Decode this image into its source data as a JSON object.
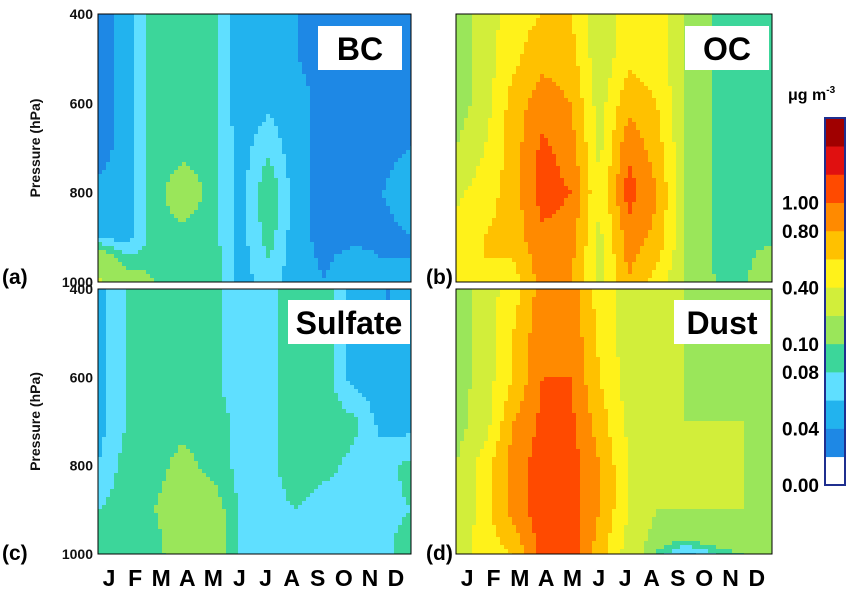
{
  "chart_data": [
    {
      "type": "heatmap",
      "panel_label": "(a)",
      "title": "BC",
      "ylabel": "Pressure (hPa)",
      "yticks": [
        "400",
        "600",
        "800",
        "1000"
      ],
      "ylim": [
        1000,
        400
      ],
      "x": [
        "J",
        "F",
        "M",
        "A",
        "M",
        "J",
        "J",
        "A",
        "S",
        "O",
        "N",
        "D"
      ],
      "y": [
        1000,
        900,
        800,
        700,
        600,
        500,
        400
      ],
      "values": [
        [
          0.22,
          0.12,
          0.1,
          0.09,
          0.1,
          0.05,
          0.07,
          0.045,
          0.04,
          0.06,
          0.045,
          0.04
        ],
        [
          0.06,
          0.05,
          0.09,
          0.09,
          0.09,
          0.05,
          0.09,
          0.045,
          0.035,
          0.035,
          0.035,
          0.04
        ],
        [
          0.045,
          0.05,
          0.09,
          0.12,
          0.09,
          0.05,
          0.1,
          0.045,
          0.035,
          0.035,
          0.04,
          0.05
        ],
        [
          0.03,
          0.05,
          0.09,
          0.09,
          0.09,
          0.05,
          0.075,
          0.045,
          0.035,
          0.035,
          0.035,
          0.04
        ],
        [
          0.03,
          0.05,
          0.09,
          0.09,
          0.09,
          0.045,
          0.055,
          0.045,
          0.035,
          0.03,
          0.03,
          0.03
        ],
        [
          0.03,
          0.05,
          0.09,
          0.09,
          0.09,
          0.045,
          0.045,
          0.04,
          0.035,
          0.03,
          0.03,
          0.03
        ],
        [
          0.03,
          0.05,
          0.09,
          0.09,
          0.09,
          0.045,
          0.045,
          0.04,
          0.035,
          0.03,
          0.03,
          0.03
        ]
      ]
    },
    {
      "type": "heatmap",
      "panel_label": "(b)",
      "title": "OC",
      "ylabel": "",
      "yticks": [],
      "ylim": [
        1000,
        400
      ],
      "x": [
        "J",
        "F",
        "M",
        "A",
        "M",
        "J",
        "J",
        "A",
        "S",
        "O",
        "N",
        "D"
      ],
      "y": [
        1000,
        900,
        800,
        700,
        600,
        500,
        400
      ],
      "values": [
        [
          0.6,
          0.6,
          0.5,
          0.9,
          0.8,
          0.3,
          0.8,
          0.5,
          0.2,
          0.1,
          0.09,
          0.15
        ],
        [
          0.5,
          0.6,
          0.7,
          0.95,
          0.9,
          0.35,
          0.9,
          0.75,
          0.2,
          0.09,
          0.09,
          0.09
        ],
        [
          0.35,
          0.5,
          0.7,
          1.1,
          1.0,
          0.4,
          1.1,
          0.8,
          0.2,
          0.09,
          0.09,
          0.09
        ],
        [
          0.2,
          0.4,
          0.7,
          1.05,
          0.9,
          0.35,
          0.95,
          0.7,
          0.2,
          0.09,
          0.09,
          0.09
        ],
        [
          0.1,
          0.3,
          0.7,
          0.9,
          0.8,
          0.3,
          0.75,
          0.6,
          0.2,
          0.09,
          0.09,
          0.09
        ],
        [
          0.1,
          0.3,
          0.55,
          0.75,
          0.7,
          0.25,
          0.55,
          0.5,
          0.2,
          0.09,
          0.09,
          0.09
        ],
        [
          0.1,
          0.3,
          0.5,
          0.6,
          0.6,
          0.25,
          0.5,
          0.5,
          0.2,
          0.09,
          0.09,
          0.09
        ]
      ]
    },
    {
      "type": "heatmap",
      "panel_label": "(c)",
      "title": "Sulfate",
      "ylabel": "Pressure (hPa)",
      "yticks": [
        "400",
        "600",
        "800",
        "1000"
      ],
      "ylim": [
        1000,
        400
      ],
      "x": [
        "J",
        "F",
        "M",
        "A",
        "M",
        "J",
        "J",
        "A",
        "S",
        "O",
        "N",
        "D"
      ],
      "y": [
        1000,
        900,
        800,
        700,
        600,
        500,
        400
      ],
      "values": [
        [
          0.09,
          0.095,
          0.09,
          0.12,
          0.12,
          0.075,
          0.075,
          0.075,
          0.075,
          0.075,
          0.075,
          0.09
        ],
        [
          0.08,
          0.09,
          0.1,
          0.12,
          0.12,
          0.075,
          0.075,
          0.08,
          0.07,
          0.075,
          0.075,
          0.08
        ],
        [
          0.06,
          0.09,
          0.09,
          0.11,
          0.09,
          0.075,
          0.075,
          0.09,
          0.085,
          0.075,
          0.075,
          0.085
        ],
        [
          0.05,
          0.08,
          0.09,
          0.09,
          0.09,
          0.075,
          0.075,
          0.09,
          0.09,
          0.085,
          0.05,
          0.05
        ],
        [
          0.05,
          0.08,
          0.09,
          0.09,
          0.09,
          0.06,
          0.075,
          0.09,
          0.09,
          0.05,
          0.05,
          0.04
        ],
        [
          0.05,
          0.08,
          0.09,
          0.09,
          0.09,
          0.06,
          0.075,
          0.09,
          0.09,
          0.05,
          0.04,
          0.04
        ],
        [
          0.05,
          0.08,
          0.09,
          0.09,
          0.09,
          0.06,
          0.075,
          0.09,
          0.09,
          0.05,
          0.04,
          0.04
        ]
      ]
    },
    {
      "type": "heatmap",
      "panel_label": "(d)",
      "title": "Dust",
      "ylabel": "",
      "yticks": [],
      "ylim": [
        1000,
        400
      ],
      "x": [
        "J",
        "F",
        "M",
        "A",
        "M",
        "J",
        "J",
        "A",
        "S",
        "O",
        "N",
        "D"
      ],
      "y": [
        1000,
        900,
        800,
        700,
        600,
        500,
        400
      ],
      "values": [
        [
          0.3,
          0.5,
          0.6,
          1.1,
          1.1,
          0.7,
          0.3,
          0.09,
          0.05,
          0.08,
          0.1,
          0.1
        ],
        [
          0.2,
          0.5,
          0.9,
          1.1,
          1.1,
          0.8,
          0.4,
          0.2,
          0.2,
          0.2,
          0.2,
          0.1
        ],
        [
          0.2,
          0.5,
          0.9,
          1.1,
          1.1,
          0.8,
          0.4,
          0.2,
          0.2,
          0.2,
          0.2,
          0.1
        ],
        [
          0.12,
          0.3,
          0.8,
          1.05,
          1.05,
          0.7,
          0.35,
          0.2,
          0.2,
          0.2,
          0.2,
          0.1
        ],
        [
          0.1,
          0.3,
          0.6,
          1.0,
          1.0,
          0.6,
          0.3,
          0.2,
          0.2,
          0.1,
          0.2,
          0.1
        ],
        [
          0.1,
          0.3,
          0.6,
          0.95,
          0.95,
          0.55,
          0.3,
          0.2,
          0.2,
          0.1,
          0.15,
          0.1
        ],
        [
          0.1,
          0.3,
          0.5,
          0.9,
          0.9,
          0.5,
          0.3,
          0.2,
          0.2,
          0.1,
          0.1,
          0.1
        ]
      ]
    }
  ],
  "colorbar": {
    "unit_base": "μg m",
    "unit_exp": "-3",
    "levels": [
      0,
      0.02,
      0.04,
      0.06,
      0.08,
      0.1,
      0.2,
      0.4,
      0.6,
      0.8,
      1.0,
      1.2,
      1.4
    ],
    "colors": [
      "#ffffff",
      "#1e88e5",
      "#22b3ee",
      "#5fdfff",
      "#3cd69a",
      "#9ae65a",
      "#d2ee3a",
      "#fff21a",
      "#ffc100",
      "#ff8a00",
      "#ff4a00",
      "#e01010",
      "#a00000"
    ],
    "tick_labels": [
      {
        "value": 0.0,
        "label": "0.00"
      },
      {
        "value": 0.04,
        "label": "0.04"
      },
      {
        "value": 0.08,
        "label": "0.08"
      },
      {
        "value": 0.1,
        "label": "0.10"
      },
      {
        "value": 0.4,
        "label": "0.40"
      },
      {
        "value": 0.8,
        "label": "0.80"
      },
      {
        "value": 1.0,
        "label": "1.00"
      }
    ]
  }
}
